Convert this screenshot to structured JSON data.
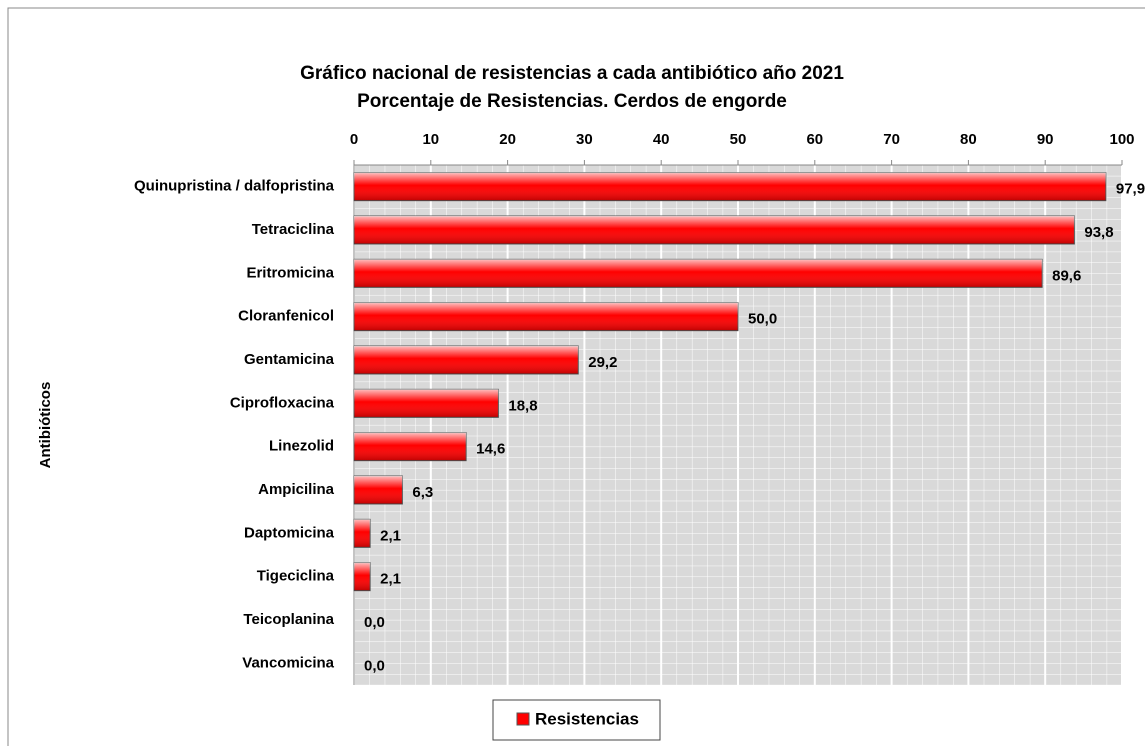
{
  "chart_data": {
    "type": "bar",
    "orientation": "horizontal",
    "title": "Gráfico nacional de resistencias a cada antibiótico año 2021",
    "subtitle": "Porcentaje de Resistencias. Cerdos de engorde",
    "y_label": "Antibióticos",
    "categories": [
      "Quinupristina / dalfopristina",
      "Tetraciclina",
      "Eritromicina",
      "Cloranfenicol",
      "Gentamicina",
      "Ciprofloxacina",
      "Linezolid",
      "Ampicilina",
      "Daptomicina",
      "Tigeciclina",
      "Teicoplanina",
      "Vancomicina"
    ],
    "series": [
      {
        "name": "Resistencias",
        "color": "#ff0000",
        "values": [
          97.9,
          93.8,
          89.6,
          50.0,
          29.2,
          18.8,
          14.6,
          6.3,
          2.1,
          2.1,
          0.0,
          0.0
        ],
        "value_labels": [
          "97,9",
          "93,8",
          "89,6",
          "50,0",
          "29,2",
          "18,8",
          "14,6",
          "6,3",
          "2,1",
          "2,1",
          "0,0",
          "0,0"
        ]
      }
    ],
    "xlim": [
      0,
      100
    ],
    "xticks": [
      0,
      10,
      20,
      30,
      40,
      50,
      60,
      70,
      80,
      90,
      100
    ],
    "grid": true,
    "legend": "bottom"
  }
}
